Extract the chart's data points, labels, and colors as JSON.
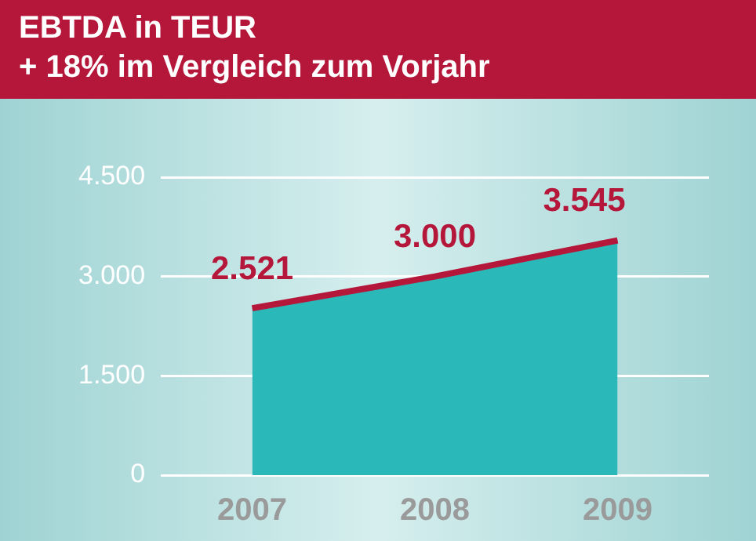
{
  "chart_data": {
    "type": "area",
    "title": "EBTDA in TEUR",
    "subtitle": "+ 18% im Vergleich zum Vorjahr",
    "categories": [
      "2007",
      "2008",
      "2009"
    ],
    "series": [
      {
        "color": "#2bb8b8",
        "values": [
          2521,
          3000,
          3545
        ]
      },
      {
        "type": "line",
        "color": "#b5173a",
        "values": [
          2521,
          3000,
          3545
        ],
        "value_labels": [
          "2.521",
          "3.000",
          "3.545"
        ]
      }
    ],
    "ylim": [
      0,
      4500
    ],
    "yticks": [
      {
        "value": 0,
        "label": "0"
      },
      {
        "value": 1500,
        "label": "1.500"
      },
      {
        "value": 3000,
        "label": "3.000"
      },
      {
        "value": 4500,
        "label": "4.500"
      }
    ],
    "grid": "y",
    "legend": false
  }
}
